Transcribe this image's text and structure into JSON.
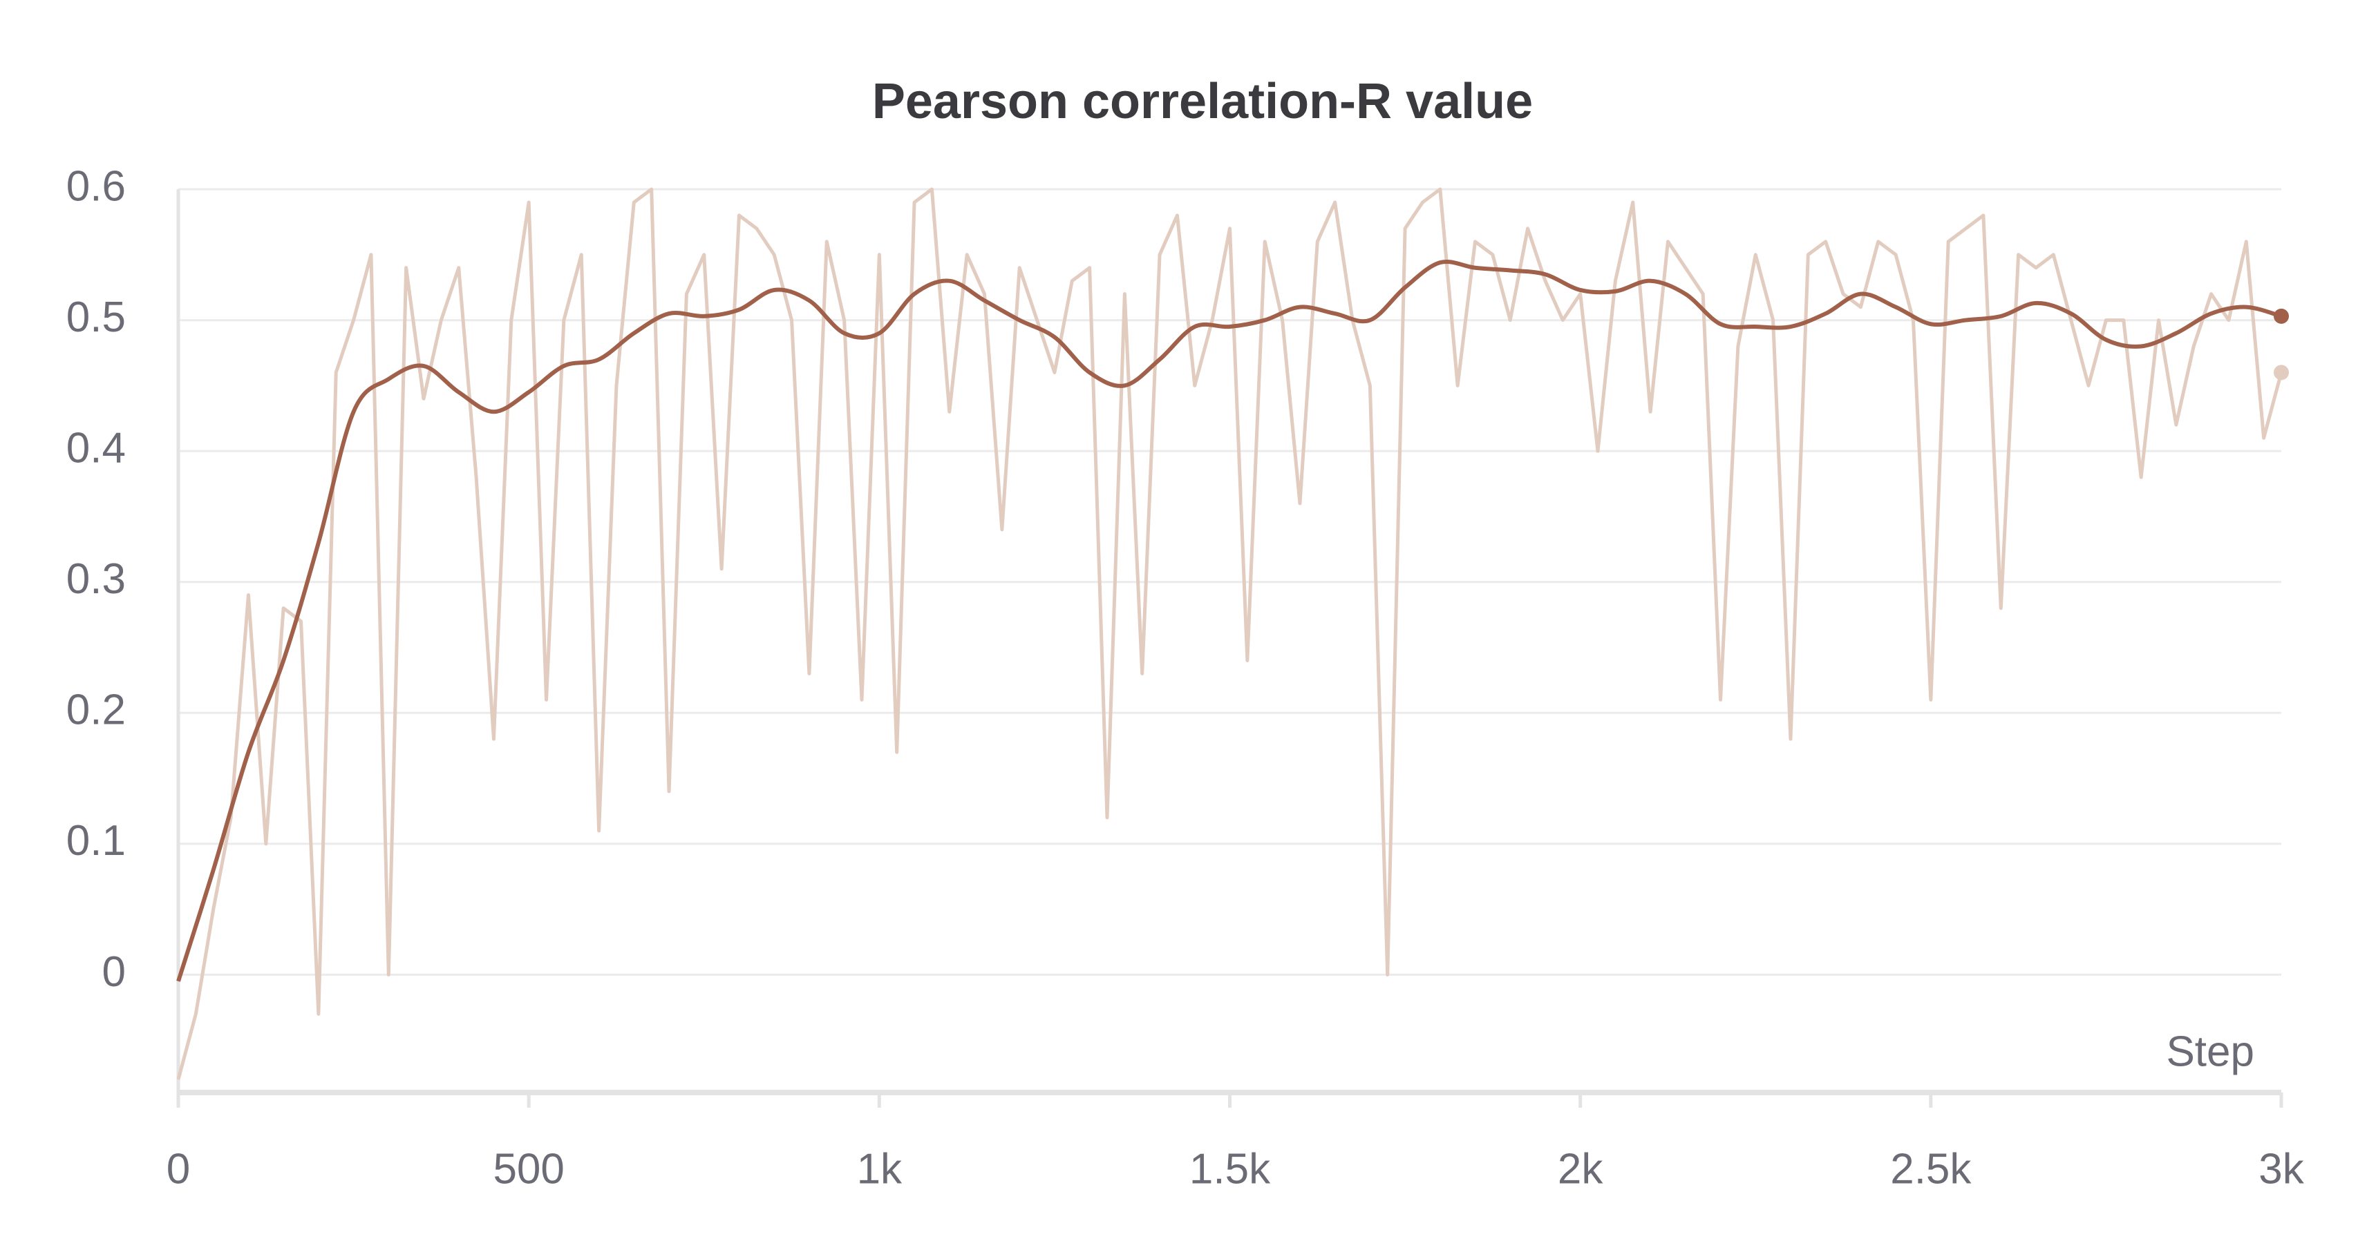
{
  "chart_data": {
    "type": "line",
    "title": "Pearson correlation-R value",
    "x_label": "Step",
    "xlim": [
      0,
      3000
    ],
    "ylim": [
      -0.09,
      0.6
    ],
    "xticks": [
      0,
      500,
      {
        "value": 1000,
        "label": "1k"
      },
      {
        "value": 1500,
        "label": "1.5k"
      },
      {
        "value": 2000,
        "label": "2k"
      },
      {
        "value": 2500,
        "label": "2.5k"
      },
      {
        "value": 3000,
        "label": "3k"
      }
    ],
    "yticks": [
      0,
      0.1,
      0.2,
      0.3,
      0.4,
      0.5,
      0.6
    ],
    "grid": true,
    "series": [
      {
        "color": "#e2cbbf",
        "x": [
          0,
          25,
          50,
          75,
          100,
          125,
          150,
          175,
          200,
          225,
          250,
          275,
          300,
          325,
          350,
          375,
          400,
          425,
          450,
          475,
          500,
          525,
          550,
          575,
          600,
          625,
          650,
          675,
          700,
          725,
          750,
          775,
          800,
          825,
          850,
          875,
          900,
          925,
          950,
          975,
          1000,
          1025,
          1050,
          1075,
          1100,
          1125,
          1150,
          1175,
          1200,
          1225,
          1250,
          1275,
          1300,
          1325,
          1350,
          1375,
          1400,
          1425,
          1450,
          1475,
          1500,
          1525,
          1550,
          1575,
          1600,
          1625,
          1650,
          1675,
          1700,
          1725,
          1750,
          1775,
          1800,
          1825,
          1850,
          1875,
          1900,
          1925,
          1950,
          1975,
          2000,
          2025,
          2050,
          2075,
          2100,
          2125,
          2150,
          2175,
          2200,
          2225,
          2250,
          2275,
          2300,
          2325,
          2350,
          2375,
          2400,
          2425,
          2450,
          2475,
          2500,
          2525,
          2550,
          2575,
          2600,
          2625,
          2650,
          2675,
          2700,
          2725,
          2750,
          2775,
          2800,
          2825,
          2850,
          2875,
          2900,
          2925,
          2950,
          2975,
          3000
        ],
        "values": [
          -0.08,
          -0.03,
          0.05,
          0.12,
          0.29,
          0.1,
          0.28,
          0.27,
          -0.03,
          0.46,
          0.5,
          0.55,
          0.0,
          0.54,
          0.44,
          0.5,
          0.54,
          0.38,
          0.18,
          0.5,
          0.59,
          0.21,
          0.5,
          0.55,
          0.11,
          0.45,
          0.59,
          0.6,
          0.14,
          0.52,
          0.55,
          0.31,
          0.58,
          0.57,
          0.55,
          0.5,
          0.23,
          0.56,
          0.5,
          0.21,
          0.55,
          0.17,
          0.59,
          0.6,
          0.43,
          0.55,
          0.52,
          0.34,
          0.54,
          0.5,
          0.46,
          0.53,
          0.54,
          0.12,
          0.52,
          0.23,
          0.55,
          0.58,
          0.45,
          0.5,
          0.57,
          0.24,
          0.56,
          0.5,
          0.36,
          0.56,
          0.59,
          0.5,
          0.45,
          0.0,
          0.57,
          0.59,
          0.6,
          0.45,
          0.56,
          0.55,
          0.5,
          0.57,
          0.53,
          0.5,
          0.52,
          0.4,
          0.53,
          0.59,
          0.43,
          0.56,
          0.54,
          0.52,
          0.21,
          0.48,
          0.55,
          0.5,
          0.18,
          0.55,
          0.56,
          0.52,
          0.51,
          0.56,
          0.55,
          0.5,
          0.21,
          0.56,
          0.57,
          0.58,
          0.28,
          0.55,
          0.54,
          0.55,
          0.5,
          0.45,
          0.5,
          0.5,
          0.38,
          0.5,
          0.42,
          0.48,
          0.52,
          0.5,
          0.56,
          0.41,
          0.46
        ]
      },
      {
        "color": "#a0604a",
        "x": [
          0,
          50,
          100,
          150,
          200,
          250,
          300,
          350,
          400,
          450,
          500,
          550,
          600,
          650,
          700,
          750,
          800,
          850,
          900,
          950,
          1000,
          1050,
          1100,
          1150,
          1200,
          1250,
          1300,
          1350,
          1400,
          1450,
          1500,
          1550,
          1600,
          1650,
          1700,
          1750,
          1800,
          1850,
          1900,
          1950,
          2000,
          2050,
          2100,
          2150,
          2200,
          2250,
          2300,
          2350,
          2400,
          2450,
          2500,
          2550,
          2600,
          2650,
          2700,
          2750,
          2800,
          2850,
          2900,
          2950,
          3000
        ],
        "values": [
          -0.005,
          0.08,
          0.17,
          0.24,
          0.33,
          0.43,
          0.455,
          0.465,
          0.445,
          0.43,
          0.445,
          0.465,
          0.47,
          0.49,
          0.505,
          0.503,
          0.508,
          0.523,
          0.515,
          0.49,
          0.49,
          0.52,
          0.53,
          0.515,
          0.5,
          0.487,
          0.46,
          0.45,
          0.47,
          0.495,
          0.495,
          0.5,
          0.51,
          0.505,
          0.5,
          0.525,
          0.544,
          0.54,
          0.538,
          0.535,
          0.523,
          0.522,
          0.53,
          0.52,
          0.497,
          0.495,
          0.495,
          0.505,
          0.52,
          0.51,
          0.497,
          0.5,
          0.503,
          0.513,
          0.505,
          0.485,
          0.48,
          0.49,
          0.505,
          0.51,
          0.503
        ]
      }
    ]
  }
}
